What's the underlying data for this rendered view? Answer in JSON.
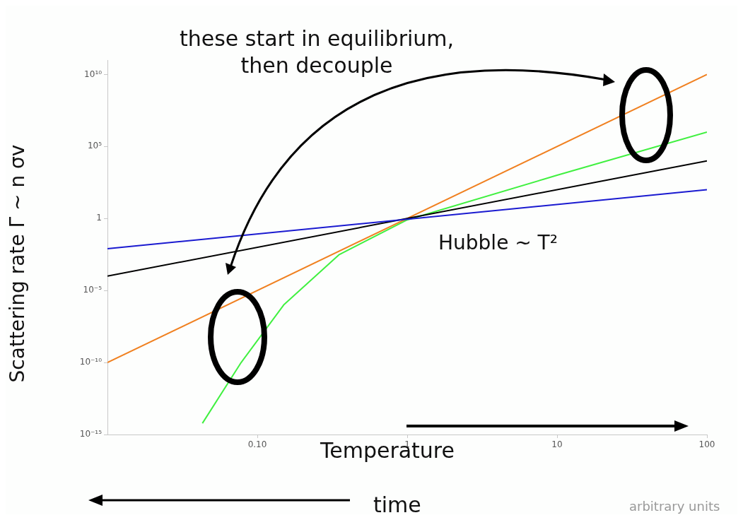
{
  "chart_data": {
    "type": "line",
    "xlabel": "Temperature",
    "ylabel": "Scattering rate Γ ~ n σv",
    "log": "xy",
    "marker": "none",
    "legend": false,
    "xlim": [
      0.01,
      100
    ],
    "xticks": [
      {
        "value": 0.1,
        "label": "0.10"
      },
      1,
      10,
      100
    ],
    "ylim": [
      1e-15,
      100000000000.0
    ],
    "yticks": [
      {
        "value": 1e-15,
        "label": "10⁻¹⁵"
      },
      {
        "value": 1e-10,
        "label": "10⁻¹⁰"
      },
      {
        "value": 1e-05,
        "label": "10⁻⁵"
      },
      1,
      {
        "value": 100000,
        "label": "10⁵"
      },
      {
        "value": 10000000000,
        "label": "10¹⁰"
      }
    ],
    "series": [
      {
        "color": "#1a1ad0",
        "x": [
          0.01,
          100
        ],
        "values": [
          0.008,
          100
        ]
      },
      {
        "color": "#000000",
        "x": [
          0.01,
          100
        ],
        "values": [
          0.0001,
          10000
        ]
      },
      {
        "color": "#f08020",
        "x": [
          0.01,
          100
        ],
        "values": [
          1e-10,
          10000000000
        ]
      },
      {
        "color": "#40f040",
        "x": [
          0.043,
          0.078,
          0.15,
          0.35,
          1,
          10,
          100
        ],
        "values": [
          6e-15,
          1e-10,
          1e-06,
          0.003,
          0.8,
          1000,
          1000000
        ]
      }
    ],
    "annotations": [
      "these start in equilibrium,\nthen decouple",
      "Hubble ~ T²",
      "time",
      "arbitrary units"
    ]
  }
}
